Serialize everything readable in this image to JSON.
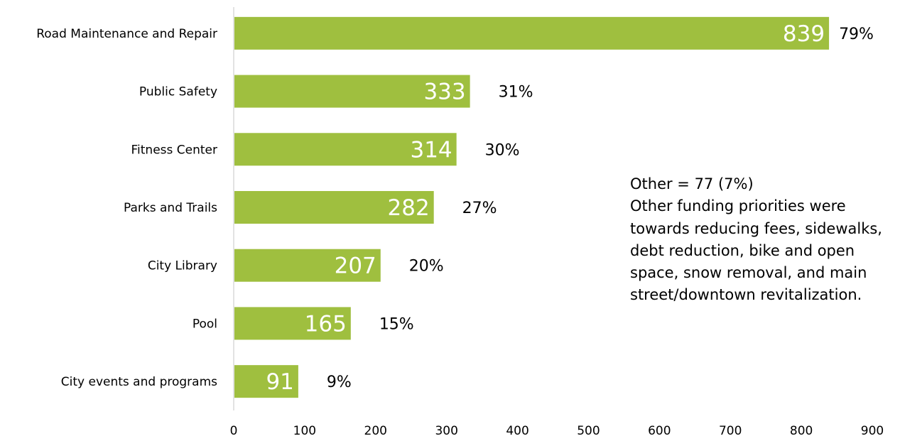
{
  "chart_data": {
    "type": "bar",
    "orientation": "horizontal",
    "categories": [
      "Road Maintenance and Repair",
      "Public Safety",
      "Fitness Center",
      "Parks and Trails",
      "City Library",
      "Pool",
      "City events and programs"
    ],
    "values": [
      839,
      333,
      314,
      282,
      207,
      165,
      91
    ],
    "percent_labels": [
      "79%",
      "31%",
      "30%",
      "27%",
      "20%",
      "15%",
      "9%"
    ],
    "xlim": [
      0,
      900
    ],
    "x_ticks": [
      0,
      100,
      200,
      300,
      400,
      500,
      600,
      700,
      800,
      900
    ],
    "grid": false,
    "bar_color": "#9fbf3f",
    "value_label_color": "#ffffff"
  },
  "annotation": {
    "title": "Other = 77 (7%)",
    "text": "Other funding priorities were towards reducing fees, sidewalks, debt reduction, bike and open space, snow removal, and main street/downtown revitalization."
  }
}
